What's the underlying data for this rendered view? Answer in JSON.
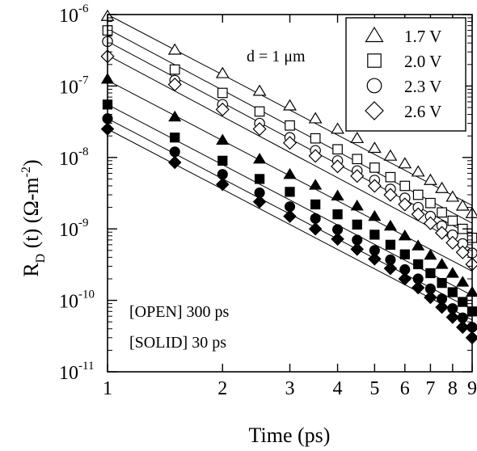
{
  "chart_data": {
    "type": "scatter",
    "title": "",
    "xlabel": "Time (ps)",
    "ylabel_main": "R",
    "ylabel_sub": "D",
    "ylabel_rest": " (t) (Ω-m",
    "ylabel_sup": "-2",
    "ylabel_close": ")",
    "x_scale": "log",
    "y_scale": "log",
    "xlim": [
      1,
      9
    ],
    "ylim": [
      1e-11,
      1e-06
    ],
    "x_ticks": [
      1,
      2,
      3,
      4,
      5,
      6,
      7,
      8,
      9
    ],
    "x_tick_labels": [
      "1",
      "2",
      "3",
      "4",
      "5",
      "6",
      "7",
      "8",
      "9"
    ],
    "y_ticks": [
      {
        "value": 1e-06,
        "base": "10",
        "exp": "-6"
      },
      {
        "value": 1e-07,
        "base": "10",
        "exp": "-7"
      },
      {
        "value": 1e-08,
        "base": "10",
        "exp": "-8"
      },
      {
        "value": 1e-09,
        "base": "10",
        "exp": "-9"
      },
      {
        "value": 1e-10,
        "base": "10",
        "exp": "-10"
      },
      {
        "value": 1e-11,
        "base": "10",
        "exp": "-11"
      }
    ],
    "grid": false,
    "legend_position": "top-right",
    "legend": [
      {
        "marker": "triangle",
        "label": "1.7 V"
      },
      {
        "marker": "square",
        "label": "2.0 V"
      },
      {
        "marker": "circle",
        "label": "2.3 V"
      },
      {
        "marker": "diamond",
        "label": "2.6 V"
      }
    ],
    "annotations": {
      "thickness": "d = 1 μm",
      "open_note": "[OPEN] 300 ps",
      "solid_note": "[SOLID] 30 ps"
    },
    "x": [
      1.0,
      1.5,
      2.0,
      2.5,
      3.0,
      3.5,
      4.0,
      4.5,
      5.0,
      5.5,
      6.0,
      6.5,
      7.0,
      7.5,
      8.0,
      8.5,
      9.0
    ],
    "series": [
      {
        "marker": "triangle",
        "fill": "open",
        "values": [
          9.5e-07,
          3.2e-07,
          1.5e-07,
          8.5e-08,
          5.3e-08,
          3.5e-08,
          2.5e-08,
          1.85e-08,
          1.35e-08,
          1.05e-08,
          8.2e-09,
          6.3e-09,
          4.8e-09,
          3.7e-09,
          2.8e-09,
          2.1e-09,
          1.65e-09
        ]
      },
      {
        "marker": "square",
        "fill": "open",
        "values": [
          6e-07,
          1.7e-07,
          8e-08,
          4.4e-08,
          2.8e-08,
          1.85e-08,
          1.3e-08,
          9.5e-09,
          7.2e-09,
          5.3e-09,
          4e-09,
          3e-09,
          2.3e-09,
          1.7e-09,
          1.3e-09,
          1e-09,
          7.5e-10
        ]
      },
      {
        "marker": "circle",
        "fill": "open",
        "values": [
          4.2e-07,
          1.2e-07,
          5.5e-08,
          3e-08,
          1.9e-08,
          1.25e-08,
          9e-09,
          6.5e-09,
          4.8e-09,
          3.6e-09,
          2.7e-09,
          2e-09,
          1.5e-09,
          1.1e-09,
          8.2e-10,
          6.2e-10,
          4.6e-10
        ]
      },
      {
        "marker": "diamond",
        "fill": "open",
        "values": [
          2.6e-07,
          1.05e-07,
          4.7e-08,
          2.5e-08,
          1.6e-08,
          1.05e-08,
          7.5e-09,
          5.5e-09,
          4e-09,
          3e-09,
          2.2e-09,
          1.6e-09,
          1.2e-09,
          8.8e-10,
          6.4e-10,
          4.7e-10,
          3.2e-10
        ]
      },
      {
        "marker": "triangle",
        "fill": "solid",
        "values": [
          1.25e-07,
          3.7e-08,
          1.75e-08,
          9.5e-09,
          5.8e-09,
          4.1e-09,
          2.9e-09,
          2.1e-09,
          1.5e-09,
          1.1e-09,
          8e-10,
          5.8e-10,
          4.3e-10,
          3.2e-10,
          2.4e-10,
          1.8e-10,
          1.3e-10
        ]
      },
      {
        "marker": "square",
        "fill": "solid",
        "values": [
          5.5e-08,
          1.9e-08,
          9e-09,
          5e-09,
          3.3e-09,
          2.2e-09,
          1.6e-09,
          1.15e-09,
          8.3e-10,
          6e-10,
          4.4e-10,
          3.2e-10,
          2.4e-10,
          1.75e-10,
          1.3e-10,
          9.5e-11,
          7e-11
        ]
      },
      {
        "marker": "circle",
        "fill": "solid",
        "values": [
          3.5e-08,
          1.2e-08,
          5.8e-09,
          3.2e-09,
          2.05e-09,
          1.4e-09,
          9.8e-10,
          7e-10,
          5e-10,
          3.7e-10,
          2.7e-10,
          2e-10,
          1.45e-10,
          1.05e-10,
          7.7e-11,
          5.7e-11,
          4.2e-11
        ]
      },
      {
        "marker": "diamond",
        "fill": "solid",
        "values": [
          2.5e-08,
          8.5e-09,
          4.2e-09,
          2.4e-09,
          1.5e-09,
          1e-09,
          7.2e-10,
          5.2e-10,
          3.8e-10,
          2.8e-10,
          2e-10,
          1.5e-10,
          1.1e-10,
          8e-11,
          5.8e-11,
          4.2e-11,
          3e-11
        ]
      }
    ],
    "fit_lines": [
      {
        "y_at_1": 1e-06,
        "slope": -2.8
      },
      {
        "y_at_1": 6.3e-07,
        "slope": -2.85
      },
      {
        "y_at_1": 4.2e-07,
        "slope": -2.85
      },
      {
        "y_at_1": 2.7e-07,
        "slope": -2.85
      },
      {
        "y_at_1": 1.2e-07,
        "slope": -2.8
      },
      {
        "y_at_1": 5.5e-08,
        "slope": -2.8
      },
      {
        "y_at_1": 3.5e-08,
        "slope": -2.8
      },
      {
        "y_at_1": 2.5e-08,
        "slope": -2.8
      }
    ]
  }
}
